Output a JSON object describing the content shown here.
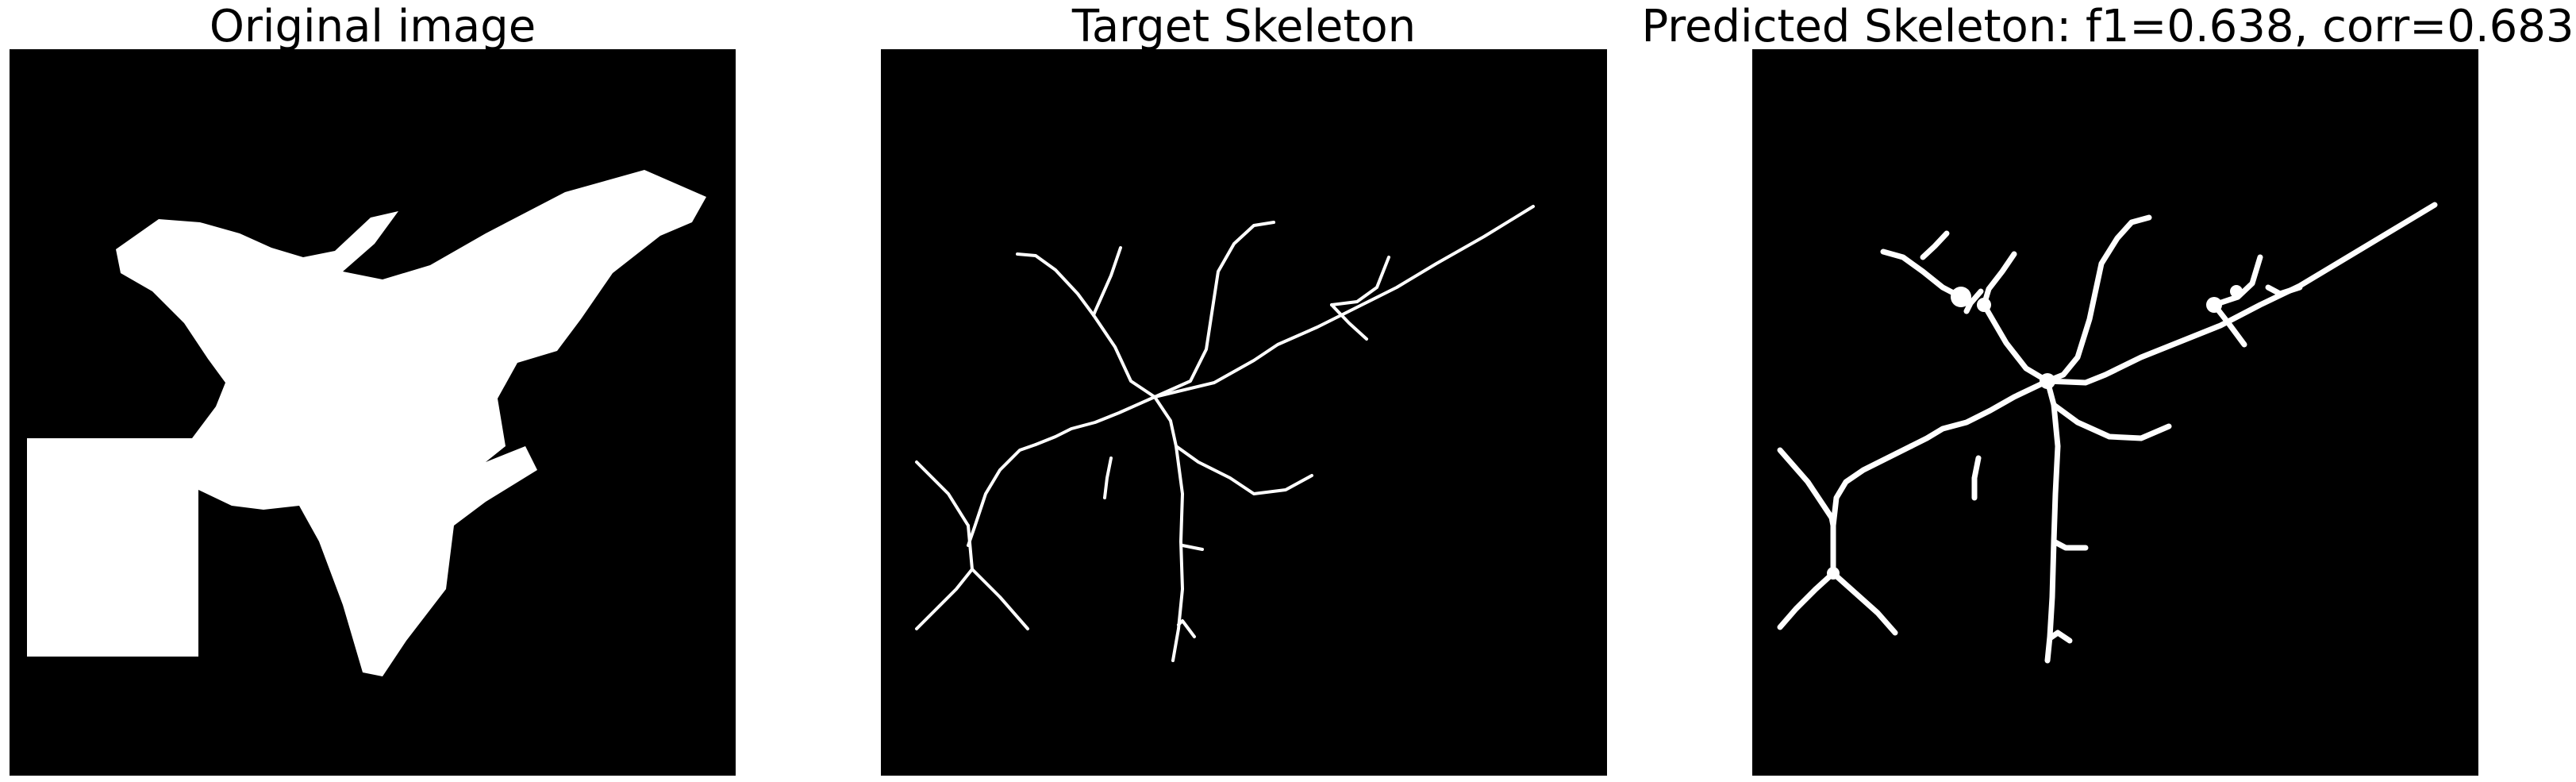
{
  "panels": [
    {
      "title": "Original image"
    },
    {
      "title": "Target Skeleton"
    },
    {
      "title": "Predicted Skeleton: f1=0.638, corr=0.683"
    }
  ],
  "colors": {
    "background": "#000000",
    "foreground": "#ffffff",
    "page": "#ffffff"
  }
}
